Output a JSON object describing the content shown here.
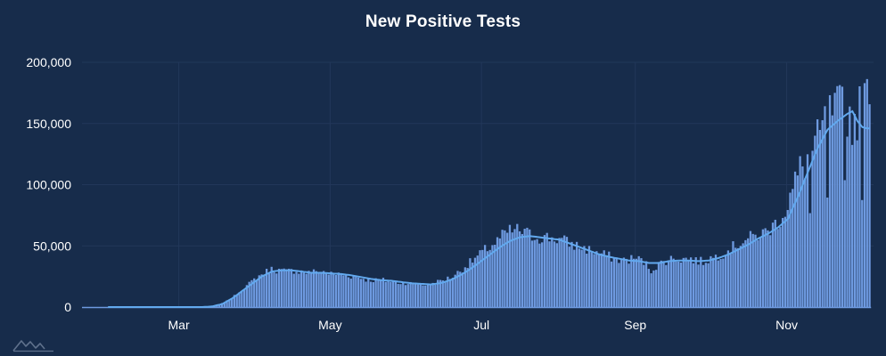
{
  "chart_data": {
    "type": "bar",
    "title": "New Positive Tests",
    "xlabel": "",
    "ylabel": "",
    "ylim": [
      0,
      200000
    ],
    "y_ticks": [
      "0",
      "50,000",
      "100,000",
      "150,000",
      "200,000"
    ],
    "y_tick_values": [
      0,
      50000,
      100000,
      150000,
      200000
    ],
    "x_ticks": [
      "Mar",
      "May",
      "Jul",
      "Sep",
      "Nov"
    ],
    "x_tick_days": [
      29,
      90,
      151,
      213,
      274
    ],
    "x_range_days": [
      -10,
      309
    ],
    "x_origin_date": "2020-01-31",
    "daily_value_anchors": [
      [
        0,
        0
      ],
      [
        38,
        0
      ],
      [
        42,
        500
      ],
      [
        45,
        2000
      ],
      [
        48,
        5000
      ],
      [
        51,
        9000
      ],
      [
        54,
        14000
      ],
      [
        57,
        19000
      ],
      [
        60,
        24000
      ],
      [
        63,
        28000
      ],
      [
        66,
        31000
      ],
      [
        69,
        30000
      ],
      [
        72,
        29000
      ],
      [
        75,
        30000
      ],
      [
        78,
        29000
      ],
      [
        81,
        28000
      ],
      [
        84,
        29000
      ],
      [
        87,
        29000
      ],
      [
        90,
        27000
      ],
      [
        93,
        27000
      ],
      [
        96,
        26000
      ],
      [
        99,
        25000
      ],
      [
        102,
        24000
      ],
      [
        105,
        22000
      ],
      [
        108,
        22000
      ],
      [
        111,
        22000
      ],
      [
        114,
        21000
      ],
      [
        117,
        20000
      ],
      [
        120,
        20000
      ],
      [
        123,
        19000
      ],
      [
        126,
        19000
      ],
      [
        129,
        18000
      ],
      [
        132,
        20000
      ],
      [
        135,
        22000
      ],
      [
        138,
        24000
      ],
      [
        141,
        28000
      ],
      [
        144,
        33000
      ],
      [
        147,
        38000
      ],
      [
        150,
        43000
      ],
      [
        153,
        48000
      ],
      [
        156,
        52000
      ],
      [
        159,
        58000
      ],
      [
        162,
        62000
      ],
      [
        165,
        63000
      ],
      [
        168,
        61000
      ],
      [
        171,
        58000
      ],
      [
        174,
        57000
      ],
      [
        177,
        57000
      ],
      [
        180,
        56000
      ],
      [
        183,
        55000
      ],
      [
        186,
        52000
      ],
      [
        189,
        50000
      ],
      [
        192,
        48000
      ],
      [
        195,
        46000
      ],
      [
        198,
        44000
      ],
      [
        201,
        42000
      ],
      [
        204,
        40000
      ],
      [
        207,
        38000
      ],
      [
        210,
        39000
      ],
      [
        213,
        40000
      ],
      [
        216,
        37000
      ],
      [
        219,
        30000
      ],
      [
        222,
        35000
      ],
      [
        225,
        38000
      ],
      [
        228,
        40000
      ],
      [
        231,
        39000
      ],
      [
        234,
        40000
      ],
      [
        237,
        38000
      ],
      [
        240,
        37000
      ],
      [
        243,
        40000
      ],
      [
        246,
        42000
      ],
      [
        249,
        45000
      ],
      [
        252,
        49000
      ],
      [
        255,
        53000
      ],
      [
        258,
        56000
      ],
      [
        261,
        58000
      ],
      [
        264,
        60000
      ],
      [
        267,
        64000
      ],
      [
        270,
        70000
      ],
      [
        273,
        80000
      ],
      [
        276,
        95000
      ],
      [
        279,
        112000
      ],
      [
        282,
        120000
      ],
      [
        285,
        130000
      ],
      [
        288,
        145000
      ],
      [
        291,
        155000
      ],
      [
        294,
        160000
      ],
      [
        297,
        165000
      ],
      [
        300,
        150000
      ],
      [
        303,
        160000
      ],
      [
        306,
        170000
      ],
      [
        307,
        190000
      ]
    ],
    "avg_value_anchors": [
      [
        0,
        0
      ],
      [
        38,
        0
      ],
      [
        42,
        500
      ],
      [
        46,
        2500
      ],
      [
        50,
        7000
      ],
      [
        54,
        13000
      ],
      [
        58,
        19000
      ],
      [
        62,
        25000
      ],
      [
        66,
        29000
      ],
      [
        70,
        30000
      ],
      [
        74,
        30000
      ],
      [
        78,
        29000
      ],
      [
        82,
        28000
      ],
      [
        86,
        28000
      ],
      [
        90,
        27500
      ],
      [
        94,
        27000
      ],
      [
        98,
        26000
      ],
      [
        102,
        24500
      ],
      [
        106,
        23000
      ],
      [
        110,
        22000
      ],
      [
        114,
        21500
      ],
      [
        118,
        20500
      ],
      [
        122,
        19500
      ],
      [
        126,
        19000
      ],
      [
        130,
        18500
      ],
      [
        134,
        19500
      ],
      [
        138,
        22000
      ],
      [
        142,
        26000
      ],
      [
        146,
        31000
      ],
      [
        150,
        37000
      ],
      [
        154,
        43000
      ],
      [
        158,
        49000
      ],
      [
        162,
        54000
      ],
      [
        166,
        57000
      ],
      [
        170,
        58000
      ],
      [
        174,
        57000
      ],
      [
        178,
        56000
      ],
      [
        182,
        55000
      ],
      [
        186,
        52000
      ],
      [
        190,
        49000
      ],
      [
        194,
        46000
      ],
      [
        198,
        43000
      ],
      [
        202,
        41000
      ],
      [
        206,
        39500
      ],
      [
        210,
        38000
      ],
      [
        214,
        37500
      ],
      [
        218,
        36000
      ],
      [
        222,
        36000
      ],
      [
        226,
        37500
      ],
      [
        230,
        38000
      ],
      [
        234,
        38000
      ],
      [
        238,
        37500
      ],
      [
        242,
        38000
      ],
      [
        246,
        40000
      ],
      [
        250,
        43000
      ],
      [
        254,
        47000
      ],
      [
        258,
        51000
      ],
      [
        262,
        56000
      ],
      [
        266,
        60000
      ],
      [
        270,
        65000
      ],
      [
        274,
        72000
      ],
      [
        278,
        90000
      ],
      [
        282,
        110000
      ],
      [
        286,
        130000
      ],
      [
        290,
        145000
      ],
      [
        294,
        152000
      ],
      [
        298,
        158000
      ],
      [
        300,
        160000
      ],
      [
        302,
        152000
      ],
      [
        304,
        147000
      ],
      [
        306,
        146000
      ],
      [
        307,
        146000
      ]
    ]
  }
}
